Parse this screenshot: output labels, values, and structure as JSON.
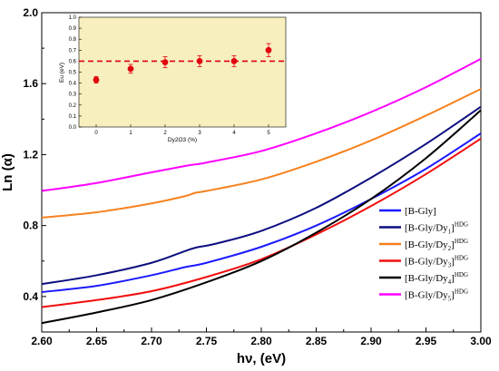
{
  "colors": {
    "B-Gly": "#1a1aff",
    "Dy1": "#0d0d80",
    "Dy2": "#f5821f",
    "Dy3": "#f20d0d",
    "Dy4": "#000000",
    "Dy5": "#ff00ff",
    "inset_bg": "#f7efbe",
    "inset_marker": "#e0000e"
  },
  "chart_data": [
    {
      "type": "line",
      "xlabel": "hν, (eV)",
      "ylabel": "Ln (α)",
      "xlim": [
        2.6,
        3.0
      ],
      "ylim": [
        0.2,
        2.0
      ],
      "x_ticks": [
        "2.60",
        "2.65",
        "2.70",
        "2.75",
        "2.80",
        "2.85",
        "2.90",
        "2.95",
        "3.00"
      ],
      "y_ticks": [
        "0.4",
        "0.8",
        "1.2",
        "1.6",
        "2.0"
      ],
      "grid": false,
      "legend_position": "bottom-right",
      "series": [
        {
          "key": "B-Gly",
          "base": "[B-Gly]",
          "sub": "",
          "sup": "",
          "x": [
            2.6,
            2.65,
            2.7,
            2.73,
            2.75,
            2.8,
            2.85,
            2.9,
            2.95,
            3.0
          ],
          "y": [
            0.425,
            0.46,
            0.52,
            0.565,
            0.59,
            0.68,
            0.8,
            0.95,
            1.12,
            1.32
          ]
        },
        {
          "key": "Dy1",
          "base": "[B-Gly/Dy",
          "sub": "1",
          "sup": "HDG",
          "x": [
            2.6,
            2.65,
            2.7,
            2.73,
            2.74,
            2.76,
            2.8,
            2.85,
            2.9,
            2.95,
            3.0
          ],
          "y": [
            0.47,
            0.52,
            0.59,
            0.655,
            0.675,
            0.7,
            0.77,
            0.9,
            1.07,
            1.26,
            1.47
          ]
        },
        {
          "key": "Dy2",
          "base": "[B-Gly/Dy",
          "sub": "2",
          "sup": "HDG",
          "x": [
            2.6,
            2.65,
            2.7,
            2.73,
            2.74,
            2.75,
            2.8,
            2.85,
            2.9,
            2.95,
            3.0
          ],
          "y": [
            0.845,
            0.875,
            0.925,
            0.965,
            0.985,
            0.995,
            1.06,
            1.16,
            1.28,
            1.42,
            1.57
          ]
        },
        {
          "key": "Dy3",
          "base": "[B-Gly/Dy",
          "sub": "3",
          "sup": "HDG",
          "x": [
            2.6,
            2.65,
            2.7,
            2.75,
            2.8,
            2.85,
            2.9,
            2.95,
            3.0
          ],
          "y": [
            0.34,
            0.38,
            0.43,
            0.51,
            0.61,
            0.75,
            0.91,
            1.09,
            1.29
          ]
        },
        {
          "key": "Dy4",
          "base": "[B-Gly/Dy",
          "sub": "4",
          "sup": "HDG",
          "x": [
            2.6,
            2.65,
            2.7,
            2.75,
            2.8,
            2.85,
            2.9,
            2.95,
            3.0
          ],
          "y": [
            0.25,
            0.31,
            0.38,
            0.48,
            0.6,
            0.76,
            0.95,
            1.18,
            1.45
          ]
        },
        {
          "key": "Dy5",
          "base": "[B-Gly/Dy",
          "sub": "5",
          "sup": "HDG",
          "x": [
            2.6,
            2.65,
            2.7,
            2.73,
            2.74,
            2.75,
            2.8,
            2.85,
            2.9,
            2.95,
            3.0
          ],
          "y": [
            0.995,
            1.04,
            1.1,
            1.135,
            1.145,
            1.155,
            1.22,
            1.32,
            1.44,
            1.58,
            1.74
          ]
        }
      ]
    },
    {
      "type": "scatter",
      "xlabel": "Dy2O3 (%)",
      "ylabel": "Eu (eV)",
      "xlim": [
        -0.5,
        5.5
      ],
      "ylim": [
        0.0,
        1.0
      ],
      "x_ticks": [
        "0",
        "1",
        "2",
        "3",
        "4",
        "5"
      ],
      "y_ticks": [
        "0.0",
        "0.1",
        "0.2",
        "0.3",
        "0.4",
        "0.5",
        "0.6",
        "0.7",
        "0.8",
        "0.9",
        "1.0"
      ],
      "reference_line": 0.6,
      "x": [
        0,
        1,
        2,
        3,
        4,
        5
      ],
      "y": [
        0.43,
        0.53,
        0.59,
        0.6,
        0.6,
        0.7
      ],
      "error": [
        0.03,
        0.04,
        0.05,
        0.05,
        0.05,
        0.06
      ]
    }
  ]
}
